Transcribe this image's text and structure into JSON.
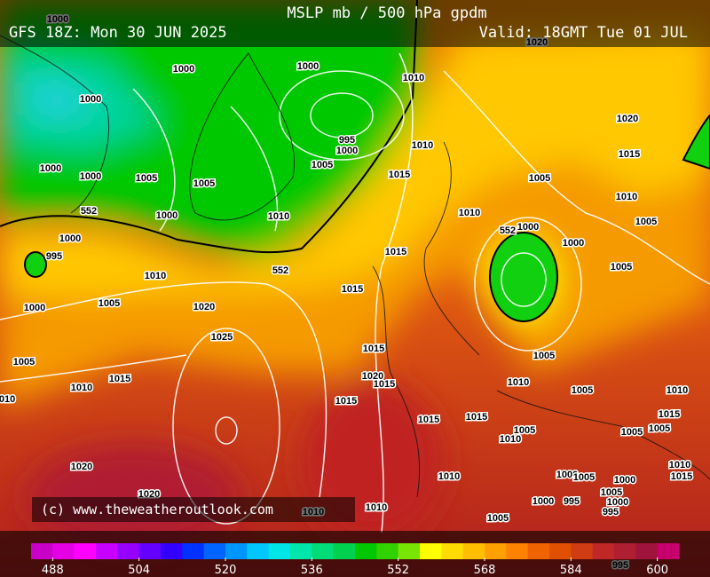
{
  "header": {
    "title": "MSLP mb / 500 hPa gpdm",
    "run": "GFS 18Z: Mon 30 JUN 2025",
    "valid": "Valid: 18GMT Tue 01 JUL"
  },
  "copyright": "(c) www.theweatheroutlook.com",
  "isobar_labels": [
    1000,
    1000,
    1000,
    1010,
    1020,
    1000,
    1020,
    995,
    1000,
    1010,
    1015,
    1005,
    1015,
    1005,
    1000,
    1000,
    1005,
    1005,
    1010,
    1000,
    1010,
    1010,
    1005,
    552,
    552,
    1000,
    1000,
    1000,
    995,
    552,
    1015,
    1005,
    1010,
    1015,
    1000,
    1005,
    1020,
    1025,
    1015,
    1005,
    1005,
    1010,
    1015,
    1020,
    1015,
    1010,
    1005,
    1010,
    "010",
    1015,
    1015,
    1015,
    1015,
    1005,
    1010,
    1005,
    1005,
    1020,
    1010,
    1010,
    1015,
    1000,
    1005,
    1000,
    1020,
    1005,
    1000,
    995,
    1000,
    995,
    1010,
    1010,
    1005,
    995
  ],
  "colorbar": {
    "lim": [
      484,
      604
    ],
    "ticks": [
      488,
      504,
      520,
      536,
      552,
      568,
      584,
      600
    ],
    "colors": [
      "#c800c8",
      "#e600e6",
      "#ff00ff",
      "#c800ff",
      "#9600ff",
      "#6400ff",
      "#3200ff",
      "#0032ff",
      "#0064ff",
      "#0096ff",
      "#00c8ff",
      "#00e6e6",
      "#00e6aa",
      "#00dc78",
      "#00d250",
      "#00c800",
      "#32d200",
      "#78e600",
      "#ffff00",
      "#ffdc00",
      "#ffbe00",
      "#ffa000",
      "#ff8200",
      "#f06400",
      "#e05000",
      "#d03c14",
      "#c02828",
      "#b01e32",
      "#a0143c",
      "#c8006e"
    ]
  }
}
